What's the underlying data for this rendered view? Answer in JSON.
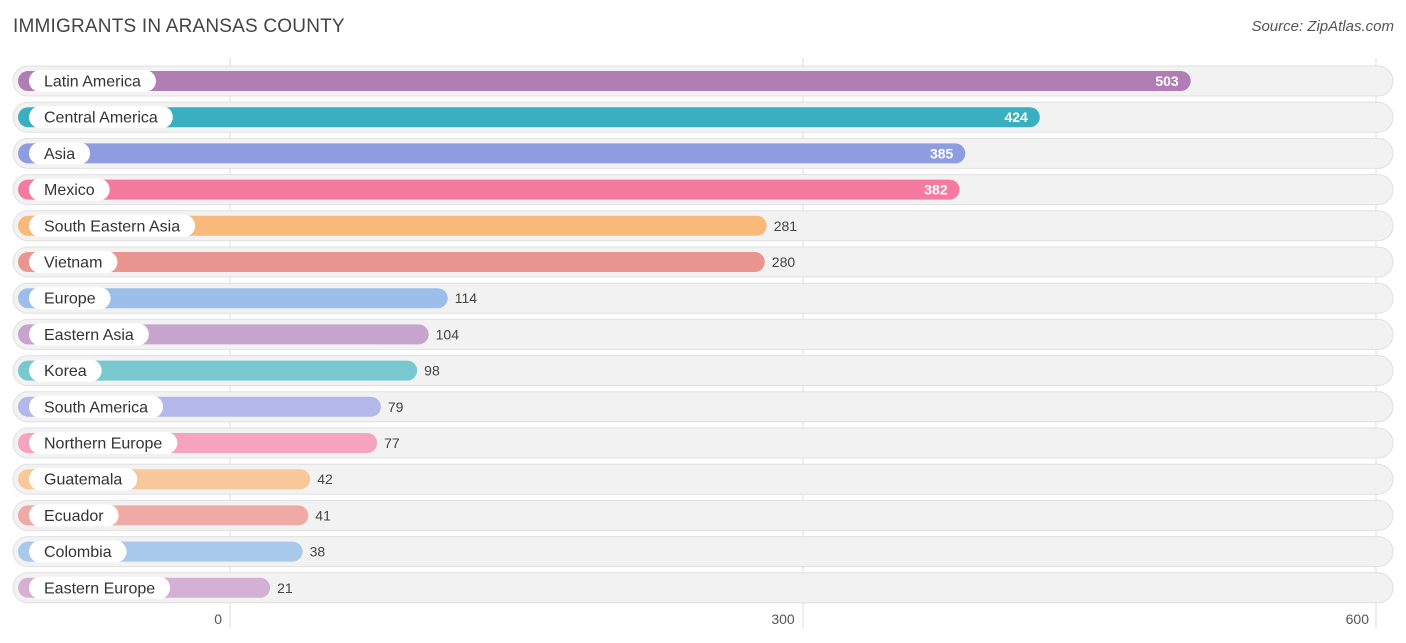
{
  "header": {
    "title": "IMMIGRANTS IN ARANSAS COUNTY",
    "source": "Source: ZipAtlas.com"
  },
  "chart_data": {
    "type": "bar",
    "orientation": "horizontal",
    "title": "IMMIGRANTS IN ARANSAS COUNTY",
    "categories": [
      "Latin America",
      "Central America",
      "Asia",
      "Mexico",
      "South Eastern Asia",
      "Vietnam",
      "Europe",
      "Eastern Asia",
      "Korea",
      "South America",
      "Northern Europe",
      "Guatemala",
      "Ecuador",
      "Colombia",
      "Eastern Europe"
    ],
    "values": [
      503,
      424,
      385,
      382,
      281,
      280,
      114,
      104,
      98,
      79,
      77,
      42,
      41,
      38,
      21
    ],
    "colors": [
      "#b07db5",
      "#3aafbf",
      "#8d9de0",
      "#f47aa0",
      "#f8b97a",
      "#e8968f",
      "#9bbfea",
      "#c7a4cd",
      "#78c8d0",
      "#b3b8e8",
      "#f5a3bf",
      "#f8c89a",
      "#f0aaa6",
      "#a8c8ec",
      "#d4b0d4"
    ],
    "xlim": [
      0,
      600
    ],
    "ticks": [
      0,
      300,
      600
    ],
    "grid": true
  }
}
